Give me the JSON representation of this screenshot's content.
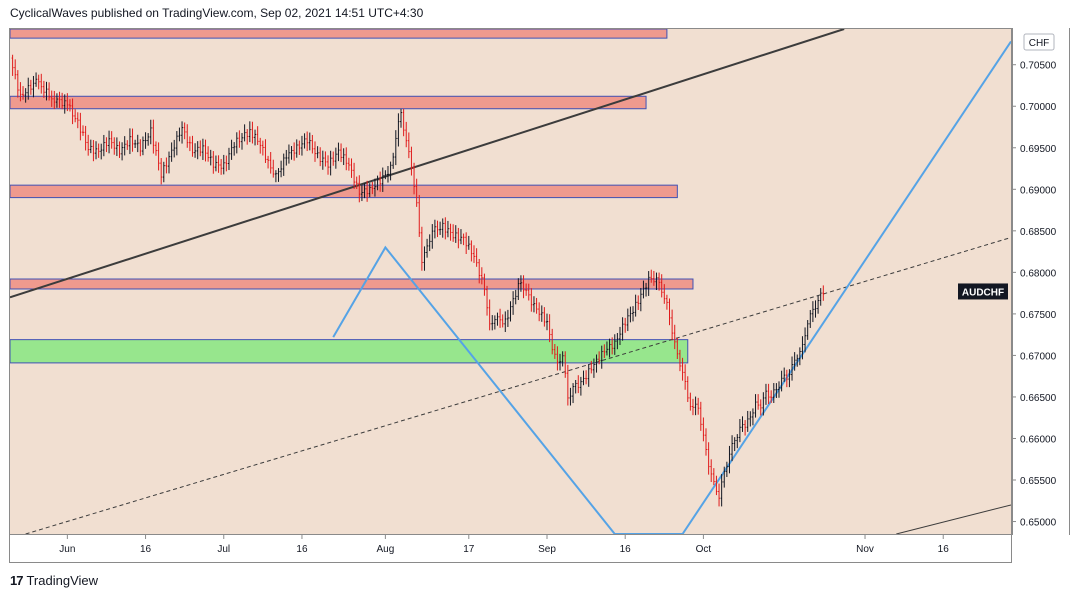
{
  "header": {
    "text": "CyclicalWaves published on TradingView.com, Sep 02, 2021 14:51 UTC+4:30"
  },
  "footer": {
    "logo_glyph": "17",
    "brand": "TradingView"
  },
  "colors": {
    "background": "#f1dfd1",
    "candle_up": "#131722",
    "candle_down": "#e01b1b",
    "zone_red_fill": "#ef9a8e",
    "zone_red_border": "#3f51b5",
    "zone_green_fill": "#97e68d",
    "zone_green_border": "#3f51b5",
    "trendline": "#3c3c3c",
    "pattern": "#55a3e6",
    "badge_bg": "#131722"
  },
  "chart_data": {
    "type": "line",
    "symbol": "AUDCHF",
    "currency_label": "CHF",
    "symbol_label": "AUDCHF",
    "y_axis": {
      "ylim": [
        0.6485,
        0.7093
      ],
      "ticks": [
        "0.70500",
        "0.70000",
        "0.69500",
        "0.69000",
        "0.68500",
        "0.68000",
        "0.67500",
        "0.67000",
        "0.66500",
        "0.66000",
        "0.65500",
        "0.65000"
      ]
    },
    "x_axis": {
      "xlim": [
        "2021-05-21",
        "2021-11-29"
      ],
      "ticks": [
        {
          "label": "Jun",
          "date": "2021-06-01"
        },
        {
          "label": "16",
          "date": "2021-06-16"
        },
        {
          "label": "Jul",
          "date": "2021-07-01"
        },
        {
          "label": "16",
          "date": "2021-07-16"
        },
        {
          "label": "Aug",
          "date": "2021-08-01"
        },
        {
          "label": "17",
          "date": "2021-08-17"
        },
        {
          "label": "Sep",
          "date": "2021-09-01"
        },
        {
          "label": "16",
          "date": "2021-09-16"
        },
        {
          "label": "Oct",
          "date": "2021-10-01"
        },
        {
          "label": "Nov",
          "date": "2021-11-01"
        },
        {
          "label": "16",
          "date": "2021-11-16"
        }
      ]
    },
    "last_price": 0.6777,
    "series": [
      {
        "values": [
          [
            "2021-05-21",
            0.7058
          ],
          [
            "2021-05-23",
            0.7012
          ],
          [
            "2021-05-26",
            0.703
          ],
          [
            "2021-05-29",
            0.701
          ],
          [
            "2021-06-01",
            0.7002
          ],
          [
            "2021-06-03",
            0.698
          ],
          [
            "2021-06-05",
            0.695
          ],
          [
            "2021-06-07",
            0.6945
          ],
          [
            "2021-06-09",
            0.696
          ],
          [
            "2021-06-11",
            0.6945
          ],
          [
            "2021-06-13",
            0.696
          ],
          [
            "2021-06-15",
            0.695
          ],
          [
            "2021-06-17",
            0.697
          ],
          [
            "2021-06-19",
            0.6918
          ],
          [
            "2021-06-21",
            0.6945
          ],
          [
            "2021-06-23",
            0.6975
          ],
          [
            "2021-06-25",
            0.6945
          ],
          [
            "2021-06-27",
            0.695
          ],
          [
            "2021-06-29",
            0.693
          ],
          [
            "2021-07-01",
            0.6928
          ],
          [
            "2021-07-03",
            0.6955
          ],
          [
            "2021-07-06",
            0.697
          ],
          [
            "2021-07-08",
            0.6955
          ],
          [
            "2021-07-10",
            0.6925
          ],
          [
            "2021-07-11",
            0.6915
          ],
          [
            "2021-07-13",
            0.694
          ],
          [
            "2021-07-15",
            0.695
          ],
          [
            "2021-07-17",
            0.696
          ],
          [
            "2021-07-19",
            0.694
          ],
          [
            "2021-07-21",
            0.693
          ],
          [
            "2021-07-23",
            0.6945
          ],
          [
            "2021-07-25",
            0.693
          ],
          [
            "2021-07-27",
            0.6895
          ],
          [
            "2021-07-29",
            0.69
          ],
          [
            "2021-07-31",
            0.691
          ],
          [
            "2021-08-02",
            0.6925
          ],
          [
            "2021-08-03",
            0.696
          ],
          [
            "2021-08-04",
            0.6995
          ],
          [
            "2021-08-05",
            0.6955
          ],
          [
            "2021-08-06",
            0.693
          ],
          [
            "2021-08-07",
            0.688
          ],
          [
            "2021-08-08",
            0.6815
          ],
          [
            "2021-08-09",
            0.683
          ],
          [
            "2021-08-10",
            0.685
          ],
          [
            "2021-08-12",
            0.6855
          ],
          [
            "2021-08-14",
            0.6845
          ],
          [
            "2021-08-16",
            0.684
          ],
          [
            "2021-08-18",
            0.682
          ],
          [
            "2021-08-20",
            0.678
          ],
          [
            "2021-08-21",
            0.6735
          ],
          [
            "2021-08-22",
            0.6745
          ],
          [
            "2021-08-24",
            0.674
          ],
          [
            "2021-08-26",
            0.6775
          ],
          [
            "2021-08-27",
            0.679
          ],
          [
            "2021-08-28",
            0.6775
          ],
          [
            "2021-08-30",
            0.6755
          ],
          [
            "2021-09-01",
            0.674
          ],
          [
            "2021-09-02",
            0.671
          ],
          [
            "2021-09-03",
            0.669
          ],
          [
            "2021-09-04",
            0.67
          ],
          [
            "2021-09-05",
            0.665
          ],
          [
            "2021-09-06",
            0.666
          ],
          [
            "2021-09-08",
            0.667
          ],
          [
            "2021-09-10",
            0.669
          ],
          [
            "2021-09-12",
            0.6705
          ],
          [
            "2021-09-14",
            0.6715
          ],
          [
            "2021-09-16",
            0.674
          ],
          [
            "2021-09-18",
            0.676
          ],
          [
            "2021-09-20",
            0.6785
          ],
          [
            "2021-09-21",
            0.6795
          ],
          [
            "2021-09-22",
            0.679
          ],
          [
            "2021-09-23",
            0.678
          ],
          [
            "2021-09-24",
            0.676
          ],
          [
            "2021-09-25",
            0.673
          ],
          [
            "2021-09-26",
            0.67
          ],
          [
            "2021-09-27",
            0.668
          ],
          [
            "2021-09-28",
            0.665
          ],
          [
            "2021-09-29",
            0.6635
          ],
          [
            "2021-09-30",
            0.664
          ],
          [
            "2021-10-01",
            0.66
          ],
          [
            "2021-10-02",
            0.657
          ],
          [
            "2021-10-03",
            0.6545
          ],
          [
            "2021-10-04",
            0.653
          ],
          [
            "2021-10-05",
            0.656
          ],
          [
            "2021-10-06",
            0.658
          ],
          [
            "2021-10-07",
            0.66
          ],
          [
            "2021-10-08",
            0.661
          ],
          [
            "2021-10-10",
            0.6625
          ],
          [
            "2021-10-11",
            0.664
          ],
          [
            "2021-10-12",
            0.664
          ],
          [
            "2021-10-13",
            0.6655
          ],
          [
            "2021-10-14",
            0.665
          ],
          [
            "2021-10-15",
            0.666
          ],
          [
            "2021-10-16",
            0.667
          ],
          [
            "2021-10-17",
            0.6675
          ],
          [
            "2021-10-18",
            0.6685
          ],
          [
            "2021-10-19",
            0.67
          ],
          [
            "2021-10-20",
            0.671
          ],
          [
            "2021-10-21",
            0.674
          ],
          [
            "2021-10-22",
            0.6755
          ],
          [
            "2021-10-23",
            0.6765
          ],
          [
            "2021-10-24",
            0.6777
          ]
        ]
      }
    ],
    "zones": [
      {
        "kind": "resistance",
        "top": 0.7093,
        "bottom": 0.7082,
        "x_end": "2021-09-24"
      },
      {
        "kind": "resistance",
        "top": 0.7012,
        "bottom": 0.6997,
        "x_end": "2021-09-20"
      },
      {
        "kind": "resistance",
        "top": 0.6905,
        "bottom": 0.689,
        "x_end": "2021-09-26"
      },
      {
        "kind": "resistance",
        "top": 0.6792,
        "bottom": 0.678,
        "x_end": "2021-09-29"
      },
      {
        "kind": "support",
        "top": 0.6719,
        "bottom": 0.6691,
        "x_end": "2021-09-28"
      }
    ],
    "trendlines": [
      {
        "style": "solid",
        "from": [
          "2021-05-21",
          0.677
        ],
        "to": [
          "2021-10-28",
          0.7093
        ]
      },
      {
        "style": "dashed",
        "from": [
          "2021-05-24",
          0.6485
        ],
        "to": [
          "2021-11-29",
          0.6842
        ]
      },
      {
        "style": "solid",
        "from": [
          "2021-11-07",
          0.6485
        ],
        "to": [
          "2021-11-29",
          0.652
        ]
      }
    ],
    "pattern": {
      "points": [
        [
          "2021-07-22",
          0.6722
        ],
        [
          "2021-08-01",
          0.683
        ],
        [
          "2021-09-14",
          0.6485
        ],
        [
          "2021-09-27",
          0.6485
        ],
        [
          "2021-11-29",
          0.7078
        ]
      ]
    }
  }
}
